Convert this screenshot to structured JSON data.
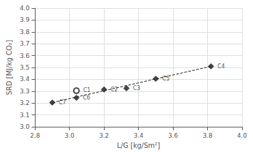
{
  "chart_data": {
    "type": "scatter",
    "xlabel": "L/G [kg/Sm²]",
    "ylabel": "SRD [MJ/kg CO₂]",
    "xlim": [
      2.8,
      4.0
    ],
    "ylim": [
      3.0,
      4.0
    ],
    "xticks": [
      2.8,
      {
        "value": 3,
        "label": "3.0"
      },
      3.2,
      3.4,
      3.6,
      3.8,
      {
        "value": 4,
        "label": "4.0"
      }
    ],
    "yticks": [
      {
        "value": 3,
        "label": "3.0"
      },
      3.1,
      3.2,
      3.3,
      3.4,
      3.5,
      3.6,
      3.7,
      3.8,
      3.9,
      {
        "value": 4,
        "label": "4.0"
      }
    ],
    "grid": true,
    "series": [
      {
        "type": "scatter",
        "color": "#1a1a1a",
        "x": [
          2.9,
          3.04,
          3.04,
          3.2,
          3.33,
          3.5,
          3.82
        ],
        "values": [
          3.205,
          3.305,
          3.245,
          3.315,
          3.325,
          3.405,
          3.51
        ],
        "labels": [
          "C7",
          "C1",
          "C6",
          "C2",
          "C3",
          "C5",
          "C4"
        ],
        "markers": [
          "diamond",
          "open_circle",
          "diamond",
          "diamond",
          "diamond",
          "diamond",
          "diamond"
        ]
      },
      {
        "type": "line",
        "line_style": "dashed",
        "color": "#1a1a1a",
        "x": [
          2.9,
          3.82
        ],
        "values": [
          3.205,
          3.51
        ]
      }
    ]
  }
}
